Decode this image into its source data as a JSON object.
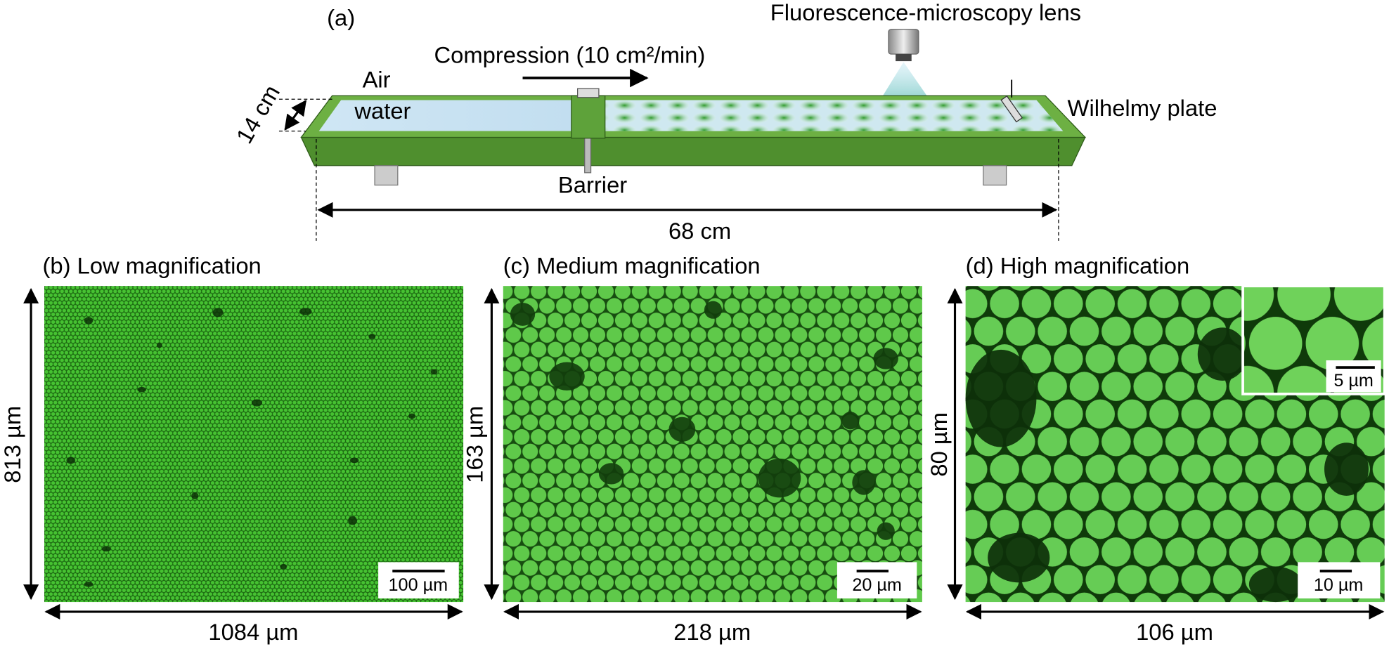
{
  "panel_a": {
    "label": "(a)",
    "compression": "Compression (10 cm²/min)",
    "lens": "Fluorescence-microscopy lens",
    "air": "Air",
    "water": "water",
    "width_label": "14 cm",
    "barrier": "Barrier",
    "plate": "Wilhelmy plate",
    "length": "68 cm"
  },
  "panels": [
    {
      "label": "(b)",
      "title": "Low magnification",
      "height": "813 µm",
      "width": "1084 µm",
      "scale_bar": "100 µm"
    },
    {
      "label": "(c)",
      "title": "Medium magnification",
      "height": "163 µm",
      "width": "218 µm",
      "scale_bar": "20 µm"
    },
    {
      "label": "(d)",
      "title": "High magnification",
      "height": "80 µm",
      "width": "106 µm",
      "scale_bar": "10 µm",
      "inset_scale_bar": "5 µm"
    }
  ]
}
